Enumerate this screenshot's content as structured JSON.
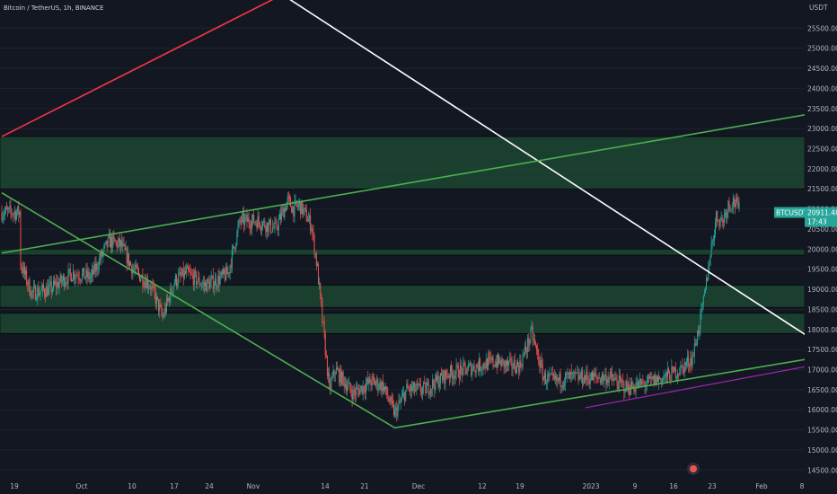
{
  "header": {
    "title": "Bitcoin / TetherUS, 1h, BINANCE"
  },
  "currency_label": "USDT",
  "price_badge": {
    "symbol": "BTCUSDT",
    "price": "20911.48",
    "countdown": "17:43",
    "color": "#26a69a"
  },
  "colors": {
    "background": "#131722",
    "up": "#26a69a",
    "down": "#ef5350",
    "zone": "#1e4d33",
    "green_line": "#4caf50",
    "red_line": "#f23645",
    "white_line": "#ffffff",
    "purple_line": "#9c27b0"
  },
  "chart_data": {
    "type": "candlestick",
    "ylim": [
      14350,
      26200
    ],
    "y_ticks": [
      14500,
      15000,
      15500,
      16000,
      16500,
      17000,
      17500,
      18000,
      18500,
      19000,
      19500,
      20000,
      20500,
      21000,
      21500,
      22000,
      22500,
      23000,
      23500,
      24000,
      24500,
      25000,
      25500
    ],
    "y_tick_labels": [
      "14500.00",
      "15000.00",
      "15500.00",
      "16000.00",
      "16500.00",
      "17000.00",
      "17500.00",
      "18000.00",
      "18500.00",
      "19000.00",
      "19500.00",
      "20000.00",
      "20500.00",
      "21000.00",
      "21500.00",
      "22000.00",
      "22500.00",
      "23000.00",
      "23500.00",
      "24000.00",
      "24500.00",
      "25000.00",
      "25500.00"
    ],
    "x_ticks": [
      "19",
      "Oct",
      "10",
      "17",
      "24",
      "Nov",
      "14",
      "21",
      "Dec",
      "12",
      "19",
      "2023",
      "9",
      "16",
      "23",
      "Feb",
      "8"
    ],
    "price_path": [
      {
        "x": "Sep 19",
        "y": 19700
      },
      {
        "x": "Sep 21",
        "y": 18900
      },
      {
        "x": "Sep 24",
        "y": 19000
      },
      {
        "x": "Sep 28",
        "y": 19400
      },
      {
        "x": "Oct 1",
        "y": 19300
      },
      {
        "x": "Oct 4",
        "y": 20200
      },
      {
        "x": "Oct 6",
        "y": 20100
      },
      {
        "x": "Oct 8",
        "y": 19500
      },
      {
        "x": "Oct 11",
        "y": 19100
      },
      {
        "x": "Oct 13",
        "y": 18300
      },
      {
        "x": "Oct 15",
        "y": 19200
      },
      {
        "x": "Oct 17",
        "y": 19400
      },
      {
        "x": "Oct 20",
        "y": 19100
      },
      {
        "x": "Oct 22",
        "y": 19200
      },
      {
        "x": "Oct 24",
        "y": 19400
      },
      {
        "x": "Oct 26",
        "y": 20700
      },
      {
        "x": "Oct 29",
        "y": 20700
      },
      {
        "x": "Nov 1",
        "y": 20500
      },
      {
        "x": "Nov 3",
        "y": 21200
      },
      {
        "x": "Nov 4",
        "y": 21000
      },
      {
        "x": "Nov 5",
        "y": 21100
      },
      {
        "x": "Nov 7",
        "y": 20600
      },
      {
        "x": "Nov 8",
        "y": 19500
      },
      {
        "x": "Nov 9",
        "y": 18000
      },
      {
        "x": "Nov 10",
        "y": 16500
      },
      {
        "x": "Nov 11",
        "y": 17000
      },
      {
        "x": "Nov 12",
        "y": 16800
      },
      {
        "x": "Nov 14",
        "y": 16400
      },
      {
        "x": "Nov 17",
        "y": 16700
      },
      {
        "x": "Nov 19",
        "y": 16600
      },
      {
        "x": "Nov 21",
        "y": 15900
      },
      {
        "x": "Nov 23",
        "y": 16500
      },
      {
        "x": "Nov 26",
        "y": 16500
      },
      {
        "x": "Nov 30",
        "y": 16900
      },
      {
        "x": "Dec 3",
        "y": 17000
      },
      {
        "x": "Dec 5",
        "y": 17100
      },
      {
        "x": "Dec 8",
        "y": 17200
      },
      {
        "x": "Dec 10",
        "y": 17100
      },
      {
        "x": "Dec 12",
        "y": 17100
      },
      {
        "x": "Dec 14",
        "y": 17900
      },
      {
        "x": "Dec 16",
        "y": 16800
      },
      {
        "x": "Dec 18",
        "y": 16700
      },
      {
        "x": "Dec 20",
        "y": 16800
      },
      {
        "x": "Dec 24",
        "y": 16800
      },
      {
        "x": "Dec 27",
        "y": 16800
      },
      {
        "x": "Dec 30",
        "y": 16550
      },
      {
        "x": "Jan 2",
        "y": 16650
      },
      {
        "x": "Jan 5",
        "y": 16800
      },
      {
        "x": "Jan 8",
        "y": 17000
      },
      {
        "x": "Jan 10",
        "y": 17300
      },
      {
        "x": "Jan 11",
        "y": 18000
      },
      {
        "x": "Jan 12",
        "y": 18800
      },
      {
        "x": "Jan 13",
        "y": 19900
      },
      {
        "x": "Jan 14",
        "y": 20800
      },
      {
        "x": "Jan 15",
        "y": 20700
      },
      {
        "x": "Jan 16",
        "y": 21100
      },
      {
        "x": "Jan 17",
        "y": 21200
      },
      {
        "x": "Jan 18",
        "y": 20911
      }
    ],
    "last_price": 20911.48,
    "zones": [
      {
        "from": 21500,
        "to": 22800
      },
      {
        "from": 19850,
        "to": 20000
      },
      {
        "from": 18550,
        "to": 19100
      },
      {
        "from": 17900,
        "to": 18400
      }
    ],
    "trendlines": [
      {
        "color": "red",
        "from": {
          "x": "Sep 16",
          "y": 22800
        },
        "to": {
          "x": "Nov 1",
          "y": 26250
        }
      },
      {
        "color": "white",
        "from": {
          "x": "Nov 3",
          "y": 26250
        },
        "to": {
          "x": "Feb 8",
          "y": 16900
        }
      },
      {
        "color": "green",
        "from": {
          "x": "Sep 16",
          "y": 19900
        },
        "to": {
          "x": "Feb 8",
          "y": 23600
        }
      },
      {
        "color": "green",
        "from": {
          "x": "Sep 16",
          "y": 21400
        },
        "to": {
          "x": "Nov 21",
          "y": 15550
        }
      },
      {
        "color": "green",
        "from": {
          "x": "Nov 21",
          "y": 15550
        },
        "to": {
          "x": "Feb 8",
          "y": 17500
        }
      },
      {
        "color": "purple",
        "from": {
          "x": "Dec 23",
          "y": 16050
        },
        "to": {
          "x": "Feb 8",
          "y": 17350
        }
      }
    ]
  }
}
